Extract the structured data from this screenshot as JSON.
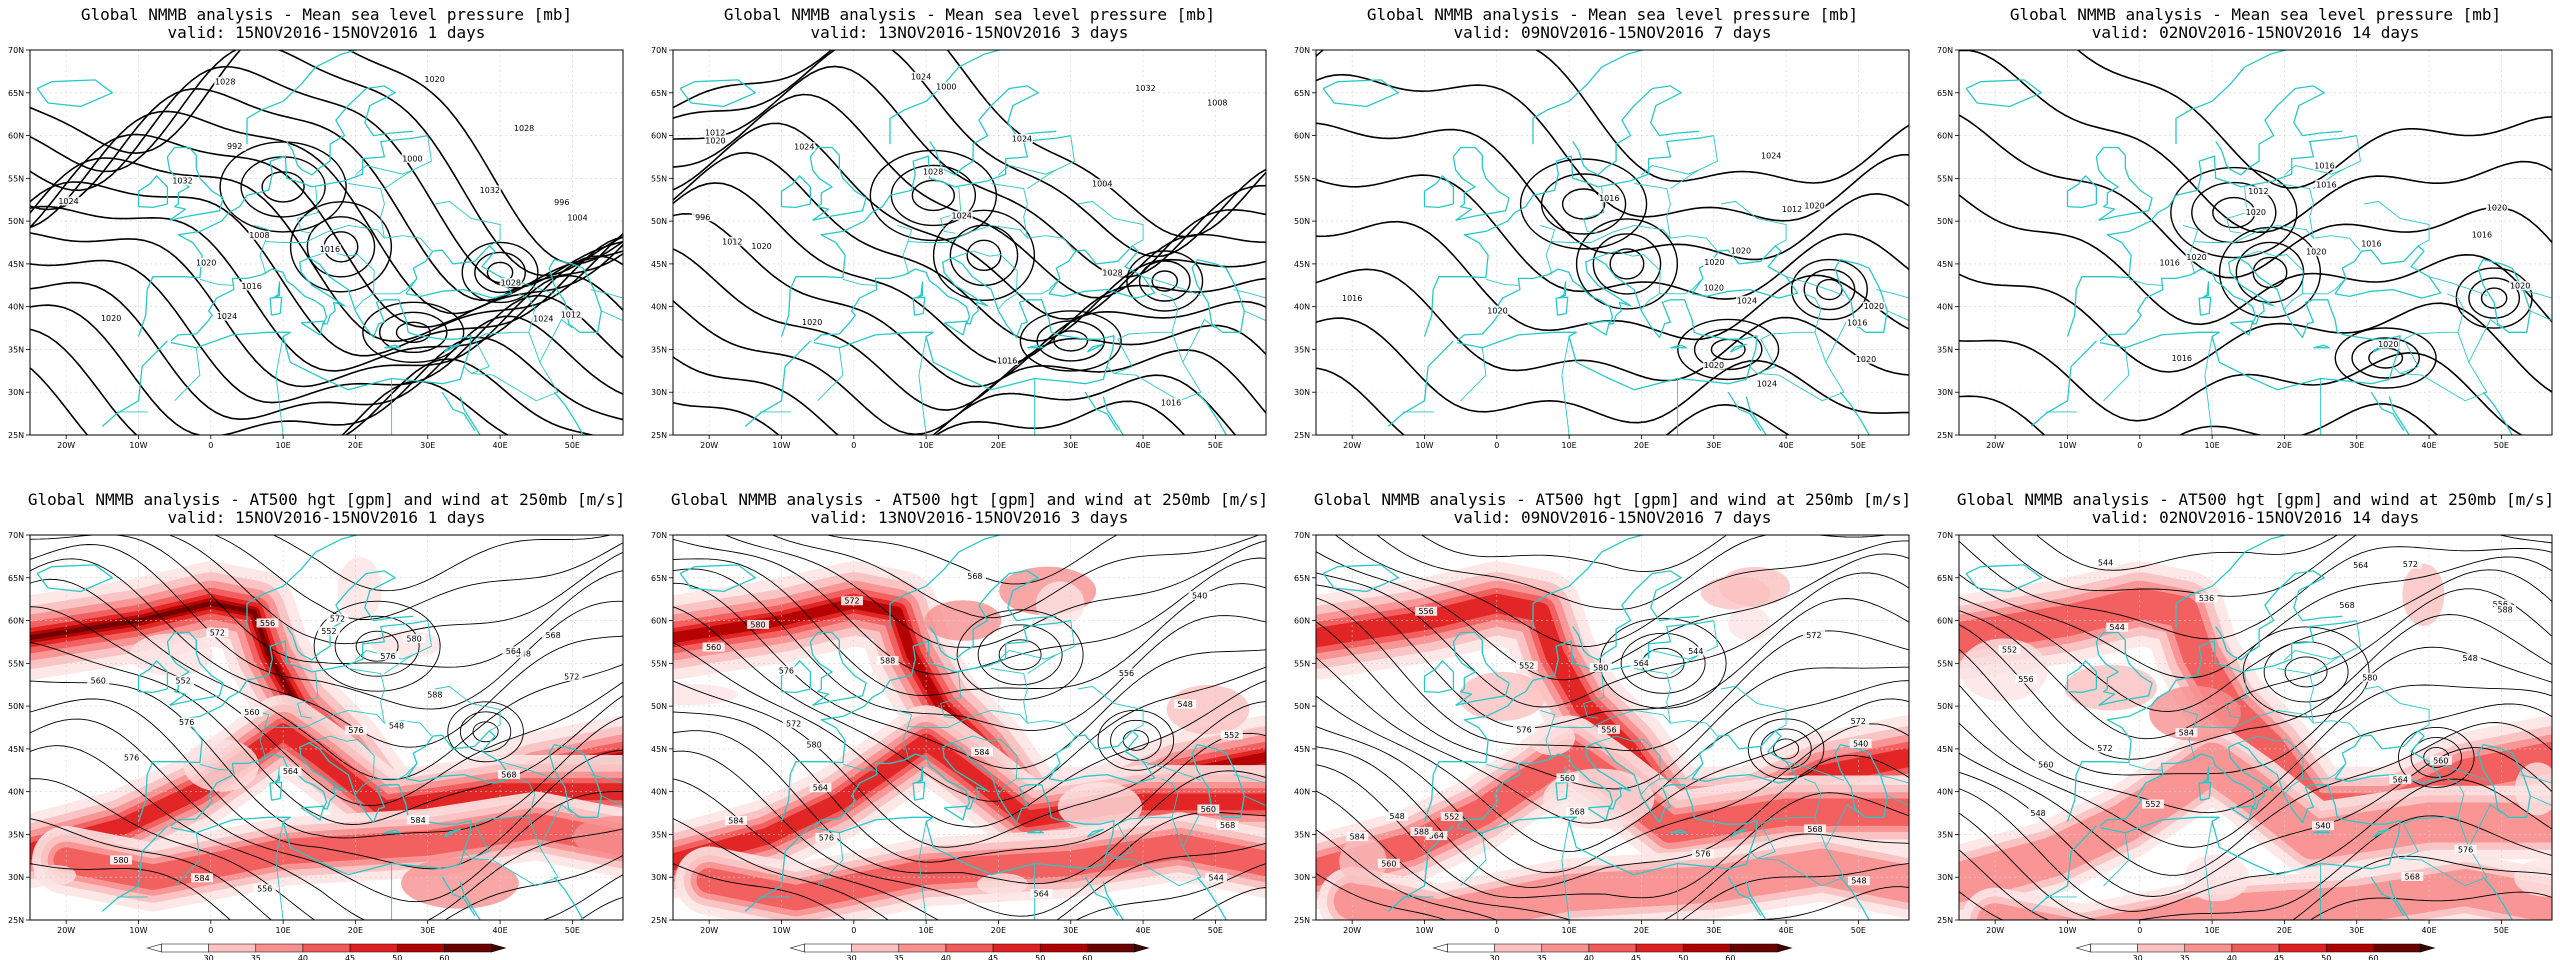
{
  "panels": [
    {
      "title": "Global NMMB analysis - Mean sea level pressure [mb]",
      "subtitle": "valid: 15NOV2016-15NOV2016  1 days",
      "kind": "mslp",
      "contour_labels": [
        "992",
        "996",
        "1000",
        "1004",
        "1008",
        "1012",
        "1016",
        "1020",
        "1024",
        "1028",
        "1032",
        "1028",
        "1032",
        "1024",
        "1020",
        "1016",
        "1020",
        "1024",
        "1028"
      ]
    },
    {
      "title": "Global NMMB analysis - Mean sea level pressure [mb]",
      "subtitle": "valid: 13NOV2016-15NOV2016  3 days",
      "kind": "mslp",
      "contour_labels": [
        "996",
        "1000",
        "1004",
        "1008",
        "1012",
        "1016",
        "1020",
        "1024",
        "1028",
        "1032",
        "1024",
        "1028",
        "1024",
        "1020",
        "1024",
        "1020",
        "1016",
        "1012"
      ]
    },
    {
      "title": "Global NMMB analysis - Mean sea level pressure [mb]",
      "subtitle": "valid: 09NOV2016-15NOV2016  7 days",
      "kind": "mslp",
      "contour_labels": [
        "1020",
        "1020",
        "1012",
        "1016",
        "1020",
        "1024",
        "1020",
        "1016",
        "1020",
        "1024",
        "1020",
        "1020",
        "1016",
        "1024",
        "1020"
      ]
    },
    {
      "title": "Global NMMB analysis - Mean sea level pressure [mb]",
      "subtitle": "valid: 02NOV2016-15NOV2016  14 days",
      "kind": "mslp",
      "contour_labels": [
        "1016",
        "1012",
        "1016",
        "1020",
        "1016",
        "1016",
        "1016",
        "1020",
        "1020",
        "1020",
        "1020",
        "1020",
        "1016"
      ]
    },
    {
      "title": "Global NMMB analysis - AT500 hgt [gpm] and wind at 250mb [m/s]",
      "subtitle": "valid: 15NOV2016-15NOV2016  1 days",
      "kind": "z500",
      "contour_labels": [
        "548",
        "552",
        "556",
        "560",
        "564",
        "568",
        "572",
        "576",
        "580",
        "584",
        "588",
        "572",
        "576",
        "576",
        "580",
        "584",
        "548",
        "552",
        "556",
        "560",
        "564",
        "568",
        "572",
        "576"
      ]
    },
    {
      "title": "Global NMMB analysis - AT500 hgt [gpm] and wind at 250mb [m/s]",
      "subtitle": "valid: 13NOV2016-15NOV2016  3 days",
      "kind": "z500",
      "contour_labels": [
        "552",
        "556",
        "560",
        "564",
        "568",
        "572",
        "576",
        "580",
        "584",
        "588",
        "540",
        "544",
        "548",
        "572",
        "576",
        "580",
        "584",
        "560",
        "564",
        "568"
      ]
    },
    {
      "title": "Global NMMB analysis - AT500 hgt [gpm] and wind at 250mb [m/s]",
      "subtitle": "valid: 09NOV2016-15NOV2016  7 days",
      "kind": "z500",
      "contour_labels": [
        "548",
        "552",
        "556",
        "560",
        "564",
        "568",
        "572",
        "576",
        "580",
        "584",
        "588",
        "540",
        "544",
        "548",
        "552",
        "556",
        "560",
        "564",
        "568",
        "572",
        "576"
      ]
    },
    {
      "title": "Global NMMB analysis - AT500 hgt [gpm] and wind at 250mb [m/s]",
      "subtitle": "valid: 02NOV2016-15NOV2016  14 days",
      "kind": "z500",
      "contour_labels": [
        "544",
        "548",
        "552",
        "556",
        "560",
        "564",
        "568",
        "572",
        "576",
        "580",
        "584",
        "588",
        "536",
        "540",
        "544",
        "548",
        "552",
        "556",
        "560",
        "564",
        "568",
        "572"
      ]
    }
  ],
  "lon_ticks": [
    "20W",
    "10W",
    "0",
    "10E",
    "20E",
    "30E",
    "40E",
    "50E"
  ],
  "lat_ticks": [
    "70N",
    "65N",
    "60N",
    "55N",
    "50N",
    "45N",
    "40N",
    "35N",
    "30N",
    "25N"
  ],
  "colorbar_labels": [
    "30",
    "35",
    "40",
    "45",
    "50",
    "60"
  ],
  "colors": {
    "coast": "#29c8c8",
    "contour": "#000000",
    "wind_ramp": [
      "#fde4e4",
      "#fbc0c0",
      "#f89090",
      "#f25a5a",
      "#e02020",
      "#b00000",
      "#6a0000"
    ]
  }
}
